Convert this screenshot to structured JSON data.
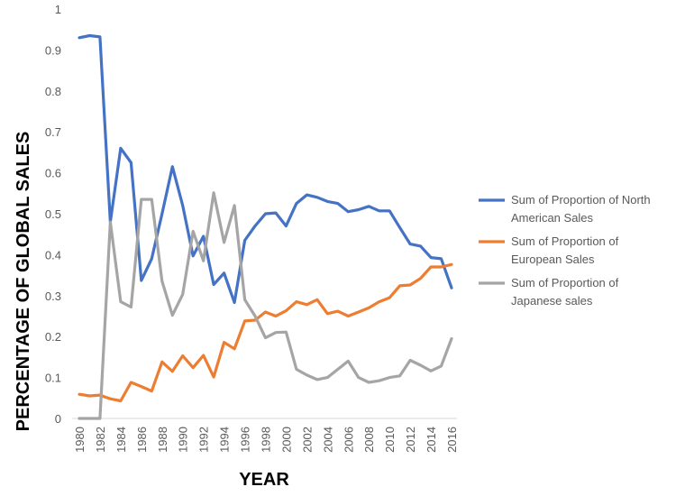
{
  "chart_data": {
    "type": "line",
    "title": "",
    "xlabel": "YEAR",
    "ylabel": "PERCENTAGE OF GLOBAL SALES",
    "ylim": [
      0,
      1
    ],
    "yticks": [
      "0",
      "0.1",
      "0.2",
      "0.3",
      "0.4",
      "0.5",
      "0.6",
      "0.7",
      "0.8",
      "0.9",
      "1"
    ],
    "x": [
      1980,
      1981,
      1982,
      1983,
      1984,
      1985,
      1986,
      1987,
      1988,
      1989,
      1990,
      1991,
      1992,
      1993,
      1994,
      1995,
      1996,
      1997,
      1998,
      1999,
      2000,
      2001,
      2002,
      2003,
      2004,
      2005,
      2006,
      2007,
      2008,
      2009,
      2010,
      2011,
      2012,
      2013,
      2014,
      2015,
      2016
    ],
    "xticks": [
      "1980",
      "1982",
      "1984",
      "1986",
      "1988",
      "1990",
      "1992",
      "1994",
      "1996",
      "1998",
      "2000",
      "2002",
      "2004",
      "2006",
      "2008",
      "2010",
      "2012",
      "2014",
      "2016"
    ],
    "grid": false,
    "legend_position": "right",
    "series": [
      {
        "name": "Sum of Proportion of North American Sales",
        "color": "#4472C4",
        "values": [
          0.93,
          0.935,
          0.932,
          0.48,
          0.66,
          0.625,
          0.337,
          0.39,
          0.5,
          0.615,
          0.52,
          0.397,
          0.445,
          0.327,
          0.355,
          0.283,
          0.435,
          0.47,
          0.5,
          0.502,
          0.47,
          0.525,
          0.546,
          0.54,
          0.53,
          0.525,
          0.505,
          0.51,
          0.518,
          0.507,
          0.507,
          0.466,
          0.426,
          0.421,
          0.393,
          0.39,
          0.319
        ]
      },
      {
        "name": "Sum of Proportion of European Sales",
        "color": "#ED7D31",
        "values": [
          0.059,
          0.055,
          0.057,
          0.048,
          0.043,
          0.088,
          0.078,
          0.067,
          0.138,
          0.115,
          0.153,
          0.124,
          0.154,
          0.101,
          0.186,
          0.17,
          0.238,
          0.24,
          0.26,
          0.25,
          0.263,
          0.285,
          0.278,
          0.29,
          0.256,
          0.262,
          0.25,
          0.26,
          0.27,
          0.285,
          0.295,
          0.324,
          0.326,
          0.342,
          0.37,
          0.37,
          0.376
        ]
      },
      {
        "name": "Sum of Proportion of Japanese sales",
        "color": "#A5A5A5",
        "values": [
          0.0,
          0.0,
          0.0,
          0.48,
          0.285,
          0.272,
          0.535,
          0.535,
          0.335,
          0.252,
          0.303,
          0.457,
          0.385,
          0.551,
          0.43,
          0.52,
          0.29,
          0.25,
          0.197,
          0.21,
          0.211,
          0.12,
          0.106,
          0.095,
          0.1,
          0.12,
          0.14,
          0.1,
          0.088,
          0.092,
          0.1,
          0.104,
          0.142,
          0.13,
          0.116,
          0.128,
          0.195
        ]
      }
    ]
  }
}
